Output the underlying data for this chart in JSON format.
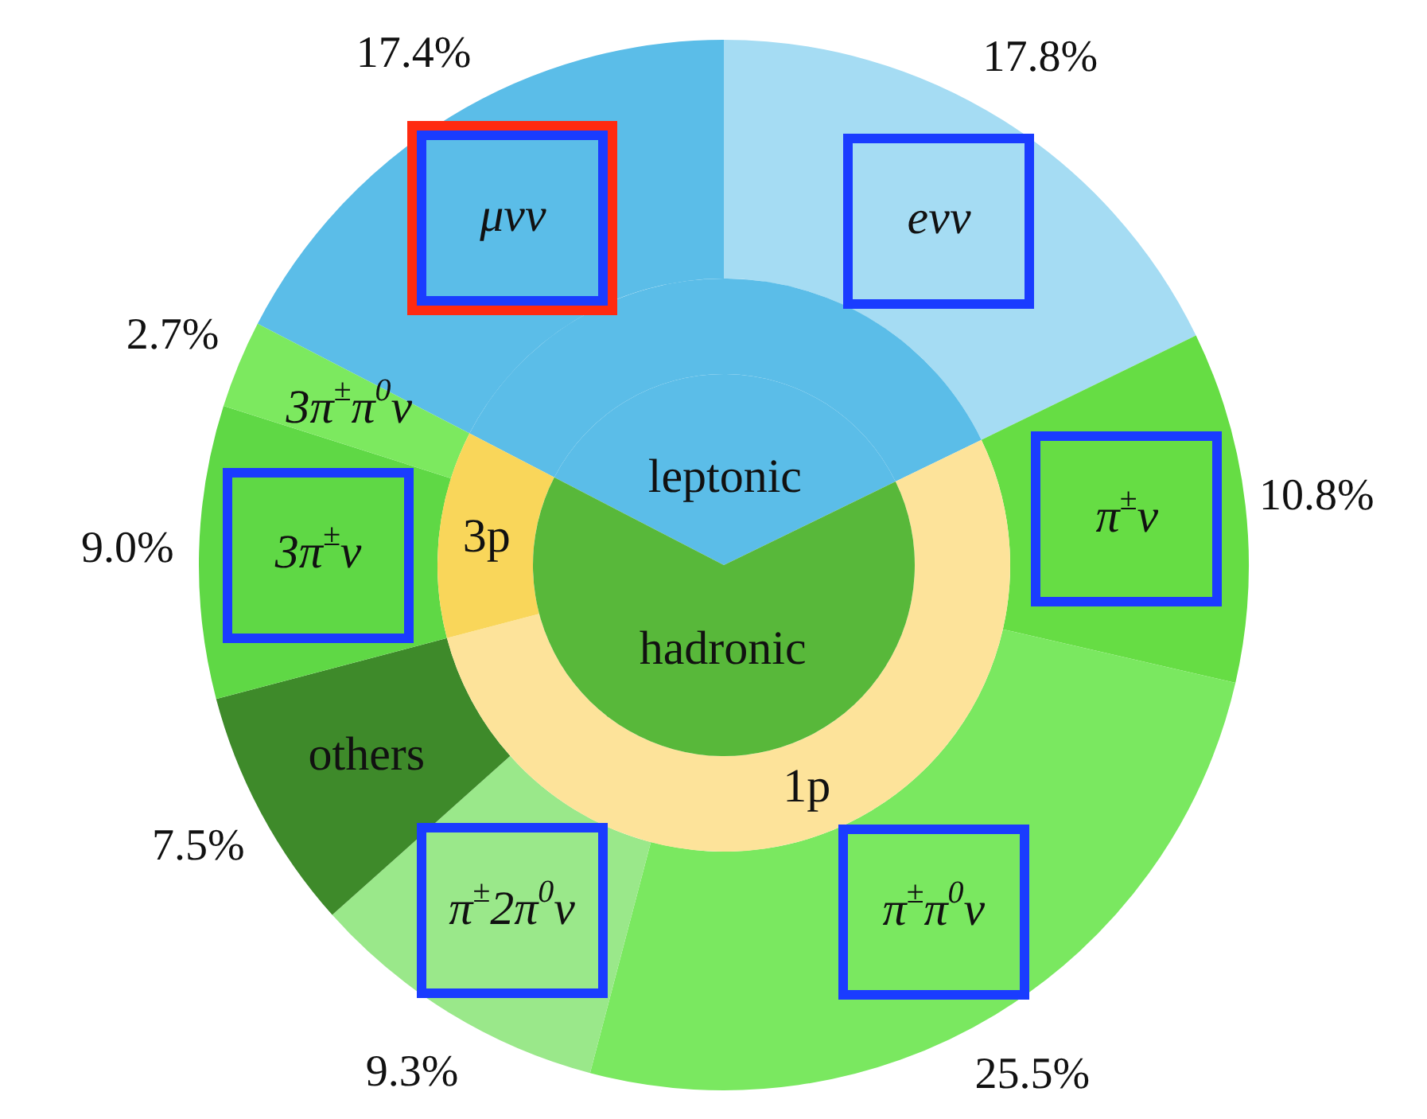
{
  "chart_data": [
    {
      "type": "donut",
      "categories": [
        "μνν",
        "eνν",
        "π$^{±}$ν",
        "π$^{±}$π$^{0}$ν",
        "π$^{±}$2π$^{0}$ν",
        "others",
        "3π$^{±}$ν",
        "3π$^{±}$π$^{0}$ν"
      ],
      "values": [
        17.4,
        17.8,
        10.8,
        25.5,
        9.3,
        7.5,
        9.0,
        2.7
      ],
      "colors": [
        "#5bbde8",
        "#a5dcf3",
        "#66dd44",
        "#7ae860",
        "#9ae88a",
        "#3e8a2a",
        "#5fd845",
        "#7ce95f"
      ],
      "value_labels": [
        "17.4%",
        "17.8%",
        "10.8%",
        "25.5%",
        "9.3%",
        "7.5%",
        "9.0%",
        "2.7%"
      ]
    },
    {
      "type": "donut",
      "categories": [
        null,
        "1p",
        "3p"
      ],
      "values": [
        35.2,
        53.1,
        11.7
      ],
      "colors": [
        "#5bbde8",
        "#fde39a",
        "#f9d65a"
      ]
    },
    {
      "type": "pie",
      "categories": [
        "leptonic",
        "hadronic"
      ],
      "values": [
        35.2,
        64.8
      ],
      "colors": [
        "#5bbde8",
        "#58b83a"
      ]
    }
  ]
}
